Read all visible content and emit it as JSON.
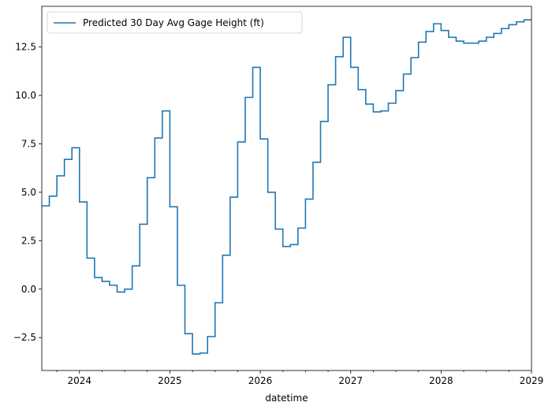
{
  "chart_data": {
    "type": "line",
    "drawstyle": "steps-post",
    "title": "",
    "xlabel": "datetime",
    "ylabel": "",
    "xlim": [
      "2023-08",
      "2029-01"
    ],
    "ylim": [
      -4.2,
      14.6
    ],
    "x_ticks": [
      "2024",
      "2025",
      "2026",
      "2027",
      "2028",
      "2029"
    ],
    "y_ticks": [
      -2.5,
      0.0,
      2.5,
      5.0,
      7.5,
      10.0,
      12.5
    ],
    "y_tick_labels": [
      "−2.5",
      "0.0",
      "2.5",
      "5.0",
      "7.5",
      "10.0",
      "12.5"
    ],
    "legend": {
      "position": "top-left",
      "entries": [
        "Predicted 30 Day Avg Gage Height (ft)"
      ]
    },
    "grid": false,
    "color": "#1f77b4",
    "series": [
      {
        "name": "Predicted 30 Day Avg Gage Height (ft)",
        "x": [
          "2023-08",
          "2023-09",
          "2023-10",
          "2023-11",
          "2023-12",
          "2024-01",
          "2024-02",
          "2024-03",
          "2024-04",
          "2024-05",
          "2024-06",
          "2024-07",
          "2024-08",
          "2024-09",
          "2024-10",
          "2024-11",
          "2024-12",
          "2025-01",
          "2025-02",
          "2025-03",
          "2025-04",
          "2025-05",
          "2025-06",
          "2025-07",
          "2025-08",
          "2025-09",
          "2025-10",
          "2025-11",
          "2025-12",
          "2026-01",
          "2026-02",
          "2026-03",
          "2026-04",
          "2026-05",
          "2026-06",
          "2026-07",
          "2026-08",
          "2026-09",
          "2026-10",
          "2026-11",
          "2026-12",
          "2027-01",
          "2027-02",
          "2027-03",
          "2027-04",
          "2027-05",
          "2027-06",
          "2027-07",
          "2027-08",
          "2027-09",
          "2027-10",
          "2027-11",
          "2027-12",
          "2028-01",
          "2028-02",
          "2028-03",
          "2028-04",
          "2028-05",
          "2028-06",
          "2028-07",
          "2028-08",
          "2028-09",
          "2028-10",
          "2028-11",
          "2028-12"
        ],
        "values": [
          4.3,
          4.8,
          5.85,
          6.7,
          7.3,
          4.5,
          1.6,
          0.6,
          0.4,
          0.2,
          -0.15,
          0.0,
          1.2,
          3.35,
          5.75,
          7.8,
          9.2,
          4.25,
          0.2,
          -2.3,
          -3.35,
          -3.3,
          -2.45,
          -0.7,
          1.75,
          4.75,
          7.6,
          9.9,
          11.45,
          7.75,
          5.0,
          3.1,
          2.2,
          2.3,
          3.15,
          4.65,
          6.55,
          8.65,
          10.55,
          12.0,
          13.0,
          11.45,
          10.3,
          9.55,
          9.15,
          9.2,
          9.6,
          10.25,
          11.1,
          11.95,
          12.75,
          13.3,
          13.7,
          13.35,
          13.0,
          12.8,
          12.7,
          12.7,
          12.8,
          13.0,
          13.2,
          13.45,
          13.65,
          13.8,
          13.9
        ]
      }
    ]
  }
}
